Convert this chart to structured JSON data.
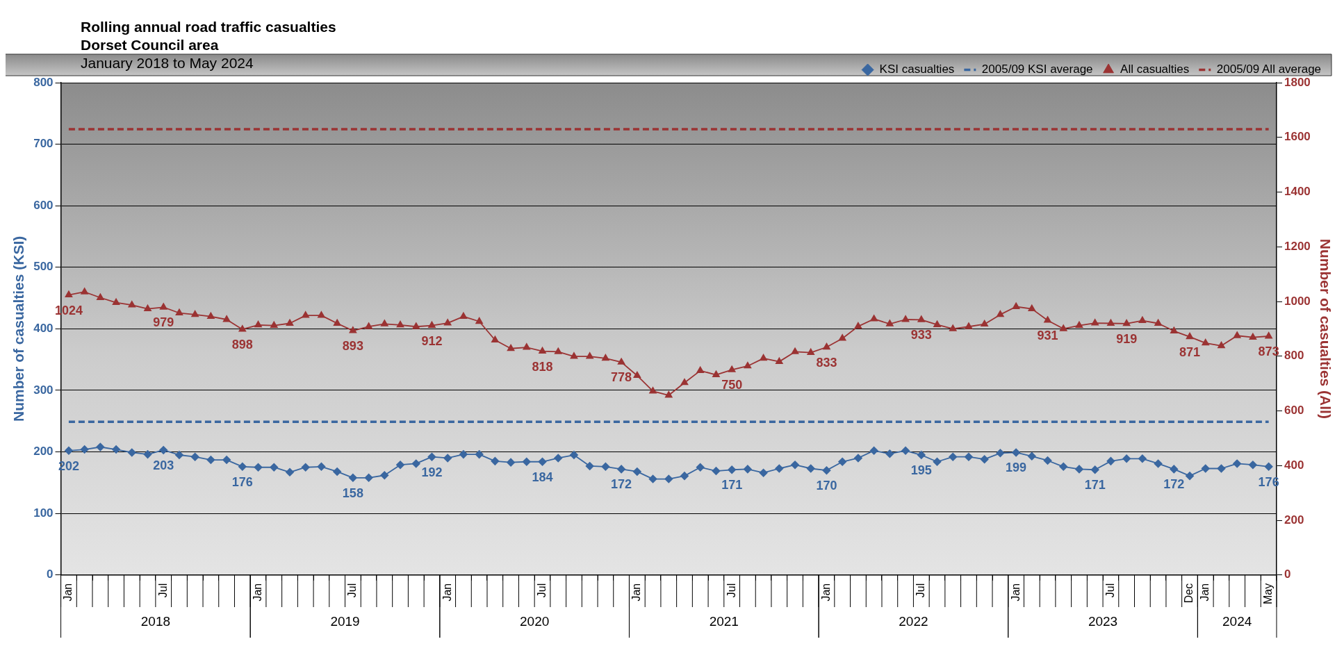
{
  "chart_data": {
    "type": "line",
    "title": "Rolling annual road traffic casualties\nDorset Council area",
    "subtitle": "January 2018 to May 2024",
    "ylabel": "Number of casualties (KSI)",
    "y2label": "Number of casualties (All)",
    "categories": [
      "Jan",
      null,
      null,
      null,
      null,
      null,
      "Jul",
      null,
      null,
      null,
      null,
      null,
      "Jan",
      null,
      null,
      null,
      null,
      null,
      "Jul",
      null,
      null,
      null,
      null,
      null,
      "Jan",
      null,
      null,
      null,
      null,
      null,
      "Jul",
      null,
      null,
      null,
      null,
      null,
      "Jan",
      null,
      null,
      null,
      null,
      null,
      "Jul",
      null,
      null,
      null,
      null,
      null,
      "Jan",
      null,
      null,
      null,
      null,
      null,
      "Jul",
      null,
      null,
      null,
      null,
      null,
      "Jan",
      null,
      null,
      null,
      null,
      null,
      "Jul",
      null,
      null,
      null,
      null,
      "Dec",
      "Jan",
      null,
      null,
      null,
      "May"
    ],
    "annotations": [
      "2018",
      "2019",
      "2020",
      "2021",
      "2022",
      "2023",
      "2024"
    ],
    "ylim": [
      0,
      800
    ],
    "yticks": [
      0,
      100,
      200,
      300,
      400,
      500,
      600,
      700,
      800
    ],
    "y2lim": [
      0,
      1800
    ],
    "y2ticks": [
      0,
      200,
      400,
      600,
      800,
      1000,
      1200,
      1400,
      1600,
      1800
    ],
    "grid": "y",
    "legend": "top right",
    "series": [
      {
        "name": "KSI casualties",
        "color": "#3a67a0",
        "marker": "diamond",
        "line_style": "solid",
        "axis": "y",
        "values": [
          202,
          204,
          208,
          204,
          199,
          196,
          203,
          195,
          192,
          187,
          187,
          176,
          175,
          175,
          167,
          175,
          176,
          168,
          158,
          158,
          162,
          179,
          181,
          192,
          190,
          196,
          196,
          185,
          183,
          184,
          184,
          190,
          195,
          177,
          176,
          172,
          168,
          156,
          156,
          161,
          175,
          169,
          171,
          172,
          166,
          173,
          179,
          173,
          170,
          184,
          190,
          202,
          197,
          202,
          195,
          184,
          192,
          192,
          188,
          198,
          199,
          193,
          186,
          176,
          172,
          171,
          185,
          189,
          189,
          181,
          172,
          161,
          173,
          173,
          181,
          179,
          176
        ],
        "value_labels": [
          "202",
          null,
          null,
          null,
          null,
          null,
          "203",
          null,
          null,
          null,
          null,
          "176",
          null,
          null,
          null,
          null,
          null,
          null,
          "158",
          null,
          null,
          null,
          null,
          "192",
          null,
          null,
          null,
          null,
          null,
          null,
          "184",
          null,
          null,
          null,
          null,
          "172",
          null,
          null,
          null,
          null,
          null,
          null,
          "171",
          null,
          null,
          null,
          null,
          null,
          "170",
          null,
          null,
          null,
          null,
          null,
          "195",
          null,
          null,
          null,
          null,
          null,
          "199",
          null,
          null,
          null,
          null,
          "171",
          null,
          null,
          null,
          null,
          "172",
          null,
          null,
          null,
          null,
          null,
          "176"
        ]
      },
      {
        "name": "2005/09 KSI average",
        "color": "#3a67a0",
        "marker": "none",
        "line_style": "dashed",
        "axis": "y",
        "values": [
          249,
          249,
          249,
          249,
          249,
          249,
          249,
          249,
          249,
          249,
          249,
          249,
          249,
          249,
          249,
          249,
          249,
          249,
          249,
          249,
          249,
          249,
          249,
          249,
          249,
          249,
          249,
          249,
          249,
          249,
          249,
          249,
          249,
          249,
          249,
          249,
          249,
          249,
          249,
          249,
          249,
          249,
          249,
          249,
          249,
          249,
          249,
          249,
          249,
          249,
          249,
          249,
          249,
          249,
          249,
          249,
          249,
          249,
          249,
          249,
          249,
          249,
          249,
          249,
          249,
          249,
          249,
          249,
          249,
          249,
          249,
          249,
          249,
          249,
          249,
          249,
          249
        ]
      },
      {
        "name": "All casualties",
        "color": "#9b3333",
        "marker": "triangle",
        "line_style": "solid",
        "axis": "y2",
        "values": [
          1024,
          1035,
          1014,
          996,
          987,
          973,
          979,
          958,
          952,
          945,
          934,
          898,
          914,
          912,
          920,
          949,
          949,
          920,
          893,
          908,
          918,
          914,
          908,
          912,
          921,
          945,
          927,
          859,
          828,
          832,
          818,
          816,
          799,
          799,
          792,
          778,
          729,
          672,
          657,
          703,
          747,
          732,
          750,
          764,
          792,
          780,
          816,
          813,
          833,
          865,
          909,
          936,
          918,
          934,
          933,
          915,
          900,
          908,
          917,
          952,
          981,
          973,
          931,
          900,
          912,
          921,
          920,
          919,
          930,
          920,
          892,
          871,
          848,
          838,
          875,
          869,
          873
        ],
        "value_labels": [
          "1024",
          null,
          null,
          null,
          null,
          null,
          "979",
          null,
          null,
          null,
          null,
          "898",
          null,
          null,
          null,
          null,
          null,
          null,
          "893",
          null,
          null,
          null,
          null,
          "912",
          null,
          null,
          null,
          null,
          null,
          null,
          "818",
          null,
          null,
          null,
          null,
          "778",
          null,
          null,
          null,
          null,
          null,
          null,
          "750",
          null,
          null,
          null,
          null,
          null,
          "833",
          null,
          null,
          null,
          null,
          null,
          "933",
          null,
          null,
          null,
          null,
          null,
          null,
          null,
          "931",
          null,
          null,
          null,
          null,
          "919",
          null,
          null,
          null,
          "871",
          null,
          null,
          null,
          null,
          "873"
        ]
      },
      {
        "name": "2005/09 All average",
        "color": "#9b3333",
        "marker": "none",
        "line_style": "dashed",
        "axis": "y2",
        "values": [
          1630,
          1630,
          1630,
          1630,
          1630,
          1630,
          1630,
          1630,
          1630,
          1630,
          1630,
          1630,
          1630,
          1630,
          1630,
          1630,
          1630,
          1630,
          1630,
          1630,
          1630,
          1630,
          1630,
          1630,
          1630,
          1630,
          1630,
          1630,
          1630,
          1630,
          1630,
          1630,
          1630,
          1630,
          1630,
          1630,
          1630,
          1630,
          1630,
          1630,
          1630,
          1630,
          1630,
          1630,
          1630,
          1630,
          1630,
          1630,
          1630,
          1630,
          1630,
          1630,
          1630,
          1630,
          1630,
          1630,
          1630,
          1630,
          1630,
          1630,
          1630,
          1630,
          1630,
          1630,
          1630,
          1630,
          1630,
          1630,
          1630,
          1630,
          1630,
          1630,
          1630,
          1630,
          1630,
          1630,
          1630
        ]
      }
    ]
  }
}
